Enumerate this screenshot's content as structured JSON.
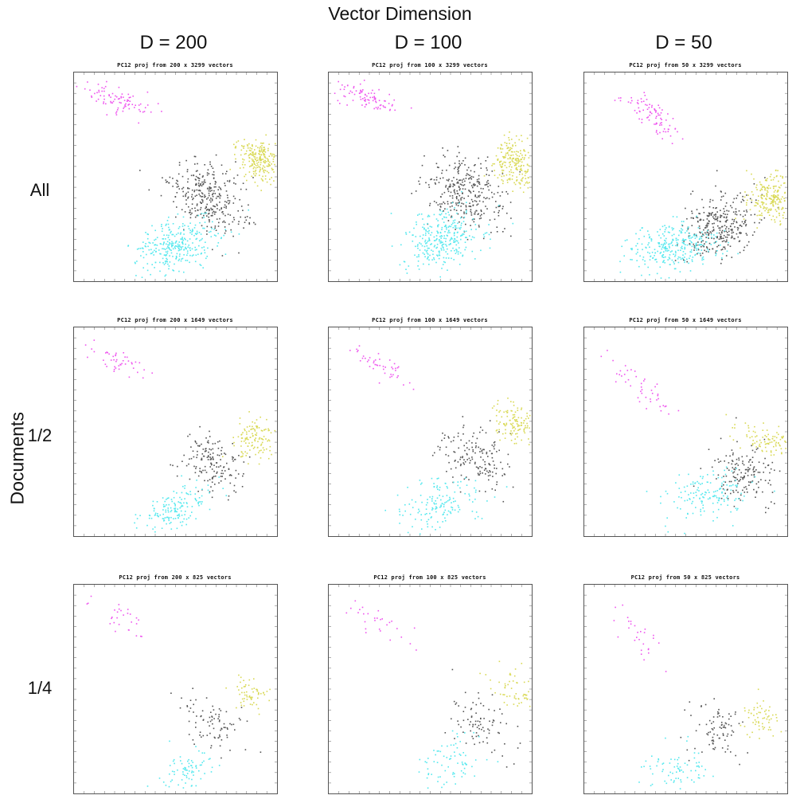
{
  "figure": {
    "super_title": "Vector Dimension",
    "row_axis_title": "Documents",
    "column_headers": [
      "D = 200",
      "D = 100",
      "D = 50"
    ],
    "row_headers": [
      "All",
      "1/2",
      "1/4"
    ]
  },
  "colors": {
    "cluster_magenta": "#ee55ee",
    "cluster_gray": "#555555",
    "cluster_yellow": "#d9d955",
    "cluster_cyan": "#55e8ee",
    "frame": "#555555"
  },
  "chart_data": [
    {
      "type": "scatter",
      "title": "PC12  proj  from 200 x 3299 vectors",
      "row": 0,
      "col": 0,
      "series": [
        {
          "color": "#ee55ee",
          "count": 85,
          "cx": 0.2,
          "cy": 0.12,
          "sx": 0.09,
          "sy": 0.03,
          "rot": 0.35
        },
        {
          "color": "#555555",
          "count": 320,
          "cx": 0.66,
          "cy": 0.6,
          "sx": 0.07,
          "sy": 0.1,
          "rot": -0.9
        },
        {
          "color": "#d9d955",
          "count": 230,
          "cx": 0.91,
          "cy": 0.42,
          "sx": 0.05,
          "sy": 0.06,
          "rot": -0.7
        },
        {
          "color": "#55e8ee",
          "count": 300,
          "cx": 0.5,
          "cy": 0.82,
          "sx": 0.1,
          "sy": 0.06,
          "rot": -0.35
        }
      ]
    },
    {
      "type": "scatter",
      "title": "PC12  proj  from 100 x 3299 vectors",
      "row": 0,
      "col": 1,
      "series": [
        {
          "color": "#ee55ee",
          "count": 85,
          "cx": 0.2,
          "cy": 0.12,
          "sx": 0.09,
          "sy": 0.03,
          "rot": 0.35
        },
        {
          "color": "#555555",
          "count": 320,
          "cx": 0.68,
          "cy": 0.57,
          "sx": 0.08,
          "sy": 0.1,
          "rot": -0.9
        },
        {
          "color": "#d9d955",
          "count": 230,
          "cx": 0.92,
          "cy": 0.44,
          "sx": 0.05,
          "sy": 0.07,
          "rot": -0.7
        },
        {
          "color": "#55e8ee",
          "count": 300,
          "cx": 0.55,
          "cy": 0.8,
          "sx": 0.1,
          "sy": 0.07,
          "rot": -0.35
        }
      ]
    },
    {
      "type": "scatter",
      "title": "PC12  proj  from 50 x 3299 vectors",
      "row": 0,
      "col": 2,
      "series": [
        {
          "color": "#ee55ee",
          "count": 85,
          "cx": 0.33,
          "cy": 0.2,
          "sx": 0.09,
          "sy": 0.03,
          "rot": 0.7
        },
        {
          "color": "#555555",
          "count": 320,
          "cx": 0.66,
          "cy": 0.73,
          "sx": 0.09,
          "sy": 0.07,
          "rot": -0.5
        },
        {
          "color": "#d9d955",
          "count": 230,
          "cx": 0.92,
          "cy": 0.6,
          "sx": 0.06,
          "sy": 0.05,
          "rot": -0.5
        },
        {
          "color": "#55e8ee",
          "count": 300,
          "cx": 0.45,
          "cy": 0.83,
          "sx": 0.11,
          "sy": 0.06,
          "rot": -0.1
        }
      ]
    },
    {
      "type": "scatter",
      "title": "PC12  proj  from 200 x 1649 vectors",
      "row": 1,
      "col": 0,
      "series": [
        {
          "color": "#ee55ee",
          "count": 45,
          "cx": 0.2,
          "cy": 0.15,
          "sx": 0.08,
          "sy": 0.03,
          "rot": 0.45
        },
        {
          "color": "#555555",
          "count": 160,
          "cx": 0.67,
          "cy": 0.65,
          "sx": 0.06,
          "sy": 0.08,
          "rot": -0.9
        },
        {
          "color": "#d9d955",
          "count": 120,
          "cx": 0.88,
          "cy": 0.53,
          "sx": 0.05,
          "sy": 0.05,
          "rot": -0.7
        },
        {
          "color": "#55e8ee",
          "count": 150,
          "cx": 0.5,
          "cy": 0.86,
          "sx": 0.1,
          "sy": 0.04,
          "rot": -0.35
        }
      ]
    },
    {
      "type": "scatter",
      "title": "PC12  proj  from 100 x 1649 vectors",
      "row": 1,
      "col": 1,
      "series": [
        {
          "color": "#ee55ee",
          "count": 45,
          "cx": 0.25,
          "cy": 0.18,
          "sx": 0.09,
          "sy": 0.03,
          "rot": 0.45
        },
        {
          "color": "#555555",
          "count": 160,
          "cx": 0.71,
          "cy": 0.62,
          "sx": 0.07,
          "sy": 0.09,
          "rot": -0.9
        },
        {
          "color": "#d9d955",
          "count": 120,
          "cx": 0.91,
          "cy": 0.45,
          "sx": 0.04,
          "sy": 0.06,
          "rot": -0.9
        },
        {
          "color": "#55e8ee",
          "count": 150,
          "cx": 0.55,
          "cy": 0.84,
          "sx": 0.1,
          "sy": 0.06,
          "rot": -0.35
        }
      ]
    },
    {
      "type": "scatter",
      "title": "PC12  proj  from 50 x 1649 vectors",
      "row": 1,
      "col": 2,
      "series": [
        {
          "color": "#ee55ee",
          "count": 45,
          "cx": 0.26,
          "cy": 0.27,
          "sx": 0.1,
          "sy": 0.03,
          "rot": 0.75
        },
        {
          "color": "#555555",
          "count": 160,
          "cx": 0.79,
          "cy": 0.7,
          "sx": 0.07,
          "sy": 0.08,
          "rot": -0.7
        },
        {
          "color": "#d9d955",
          "count": 120,
          "cx": 0.93,
          "cy": 0.55,
          "sx": 0.03,
          "sy": 0.09,
          "rot": -1.3
        },
        {
          "color": "#55e8ee",
          "count": 150,
          "cx": 0.6,
          "cy": 0.8,
          "sx": 0.11,
          "sy": 0.06,
          "rot": -0.2
        }
      ]
    },
    {
      "type": "scatter",
      "title": "PC12  proj  from 200 x 825 vectors",
      "row": 2,
      "col": 0,
      "series": [
        {
          "color": "#ee55ee",
          "count": 28,
          "cx": 0.2,
          "cy": 0.15,
          "sx": 0.09,
          "sy": 0.03,
          "rot": 0.4
        },
        {
          "color": "#555555",
          "count": 85,
          "cx": 0.68,
          "cy": 0.66,
          "sx": 0.06,
          "sy": 0.08,
          "rot": -0.9
        },
        {
          "color": "#d9d955",
          "count": 60,
          "cx": 0.87,
          "cy": 0.52,
          "sx": 0.04,
          "sy": 0.04,
          "rot": -0.7
        },
        {
          "color": "#55e8ee",
          "count": 75,
          "cx": 0.56,
          "cy": 0.87,
          "sx": 0.08,
          "sy": 0.04,
          "rot": -0.45
        }
      ]
    },
    {
      "type": "scatter",
      "title": "PC12  proj  from 100 x 825 vectors",
      "row": 2,
      "col": 1,
      "series": [
        {
          "color": "#ee55ee",
          "count": 28,
          "cx": 0.25,
          "cy": 0.18,
          "sx": 0.09,
          "sy": 0.03,
          "rot": 0.4
        },
        {
          "color": "#555555",
          "count": 85,
          "cx": 0.73,
          "cy": 0.66,
          "sx": 0.06,
          "sy": 0.09,
          "rot": -1.0
        },
        {
          "color": "#d9d955",
          "count": 60,
          "cx": 0.91,
          "cy": 0.5,
          "sx": 0.04,
          "sy": 0.06,
          "rot": -1.0
        },
        {
          "color": "#55e8ee",
          "count": 75,
          "cx": 0.6,
          "cy": 0.84,
          "sx": 0.09,
          "sy": 0.06,
          "rot": -0.35
        }
      ]
    },
    {
      "type": "scatter",
      "title": "PC12  proj  from 50 x 825 vectors",
      "row": 2,
      "col": 2,
      "series": [
        {
          "color": "#ee55ee",
          "count": 28,
          "cx": 0.27,
          "cy": 0.25,
          "sx": 0.09,
          "sy": 0.03,
          "rot": 0.75
        },
        {
          "color": "#555555",
          "count": 85,
          "cx": 0.66,
          "cy": 0.7,
          "sx": 0.08,
          "sy": 0.07,
          "rot": -0.5
        },
        {
          "color": "#d9d955",
          "count": 60,
          "cx": 0.87,
          "cy": 0.64,
          "sx": 0.05,
          "sy": 0.05,
          "rot": -0.6
        },
        {
          "color": "#55e8ee",
          "count": 75,
          "cx": 0.45,
          "cy": 0.88,
          "sx": 0.09,
          "sy": 0.05,
          "rot": -0.1
        }
      ]
    }
  ]
}
